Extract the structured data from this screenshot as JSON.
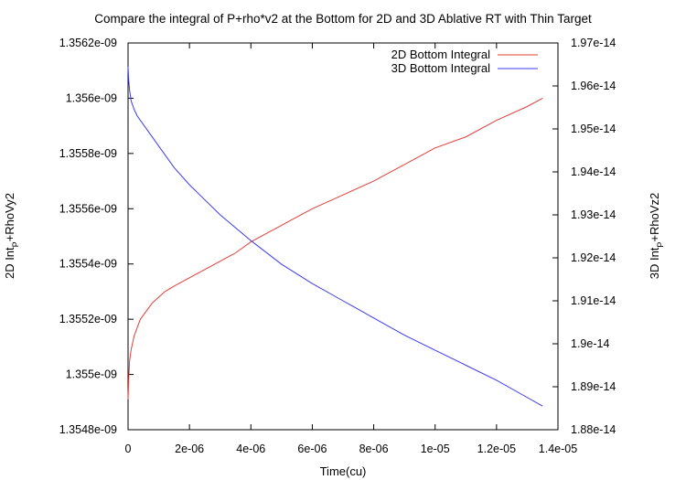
{
  "chart_data": {
    "type": "line",
    "title": "Compare the integral of P+rho*v2 at the Bottom for 2D and 3D Ablative RT with Thin Target",
    "xlabel": "Time(cu)",
    "ylabel_left": {
      "prefix": "2D Int",
      "sub": "P",
      "suffix": "+RhoVy2"
    },
    "ylabel_right": {
      "prefix": "3D Int",
      "sub": "P",
      "suffix": "+RhoVz2"
    },
    "xlim": [
      0,
      1.4e-05
    ],
    "ylim_left": [
      1.3548e-09,
      1.3562e-09
    ],
    "ylim_right": [
      1.88e-14,
      1.97e-14
    ],
    "x_ticks": [
      {
        "value": 0,
        "label": "0"
      },
      {
        "value": 2e-06,
        "label": "2e-06"
      },
      {
        "value": 4e-06,
        "label": "4e-06"
      },
      {
        "value": 6e-06,
        "label": "6e-06"
      },
      {
        "value": 8e-06,
        "label": "8e-06"
      },
      {
        "value": 1e-05,
        "label": "1e-05"
      },
      {
        "value": 1.2e-05,
        "label": "1.2e-05"
      },
      {
        "value": 1.4e-05,
        "label": "1.4e-05"
      }
    ],
    "y_ticks_left": [
      {
        "value": 1.3548e-09,
        "label": "1.3548e-09"
      },
      {
        "value": 1.355e-09,
        "label": "1.355e-09"
      },
      {
        "value": 1.3552e-09,
        "label": "1.3552e-09"
      },
      {
        "value": 1.3554e-09,
        "label": "1.3554e-09"
      },
      {
        "value": 1.3556e-09,
        "label": "1.3556e-09"
      },
      {
        "value": 1.3558e-09,
        "label": "1.3558e-09"
      },
      {
        "value": 1.356e-09,
        "label": "1.356e-09"
      },
      {
        "value": 1.3562e-09,
        "label": "1.3562e-09"
      }
    ],
    "y_ticks_right": [
      {
        "value": 1.88e-14,
        "label": "1.88e-14"
      },
      {
        "value": 1.89e-14,
        "label": "1.89e-14"
      },
      {
        "value": 1.9e-14,
        "label": "1.9e-14"
      },
      {
        "value": 1.91e-14,
        "label": "1.91e-14"
      },
      {
        "value": 1.92e-14,
        "label": "1.92e-14"
      },
      {
        "value": 1.93e-14,
        "label": "1.93e-14"
      },
      {
        "value": 1.94e-14,
        "label": "1.94e-14"
      },
      {
        "value": 1.95e-14,
        "label": "1.95e-14"
      },
      {
        "value": 1.96e-14,
        "label": "1.96e-14"
      },
      {
        "value": 1.97e-14,
        "label": "1.97e-14"
      }
    ],
    "grid": false,
    "legend_position": "top-right",
    "series": [
      {
        "name": "2D Bottom Integral",
        "axis": "left",
        "color": "#e0403a",
        "x": [
          0,
          2e-08,
          5e-08,
          1e-07,
          2e-07,
          3e-07,
          4e-07,
          6e-07,
          8e-07,
          1e-06,
          1.2e-06,
          1.5e-06,
          2e-06,
          2.5e-06,
          3e-06,
          3.5e-06,
          4e-06,
          4.5e-06,
          5e-06,
          5.5e-06,
          6e-06,
          7e-06,
          8e-06,
          9e-06,
          1e-05,
          1.1e-05,
          1.2e-05,
          1.3e-05,
          1.35e-05
        ],
        "y": [
          1.35491e-09,
          1.35498e-09,
          1.35505e-09,
          1.35509e-09,
          1.35514e-09,
          1.35517e-09,
          1.3552e-09,
          1.35523e-09,
          1.35526e-09,
          1.35528e-09,
          1.3553e-09,
          1.35532e-09,
          1.35535e-09,
          1.35538e-09,
          1.35541e-09,
          1.35544e-09,
          1.35548e-09,
          1.35551e-09,
          1.35554e-09,
          1.35557e-09,
          1.3556e-09,
          1.35565e-09,
          1.3557e-09,
          1.35576e-09,
          1.35582e-09,
          1.35586e-09,
          1.35592e-09,
          1.35597e-09,
          1.356e-09
        ]
      },
      {
        "name": "3D Bottom Integral",
        "axis": "right",
        "color": "#3b3bf0",
        "x": [
          0,
          2e-08,
          5e-08,
          1e-07,
          2e-07,
          3e-07,
          5e-07,
          7e-07,
          1e-06,
          1.5e-06,
          2e-06,
          2.5e-06,
          3e-06,
          3.5e-06,
          4e-06,
          5e-06,
          6e-06,
          7e-06,
          8e-06,
          9e-06,
          1e-05,
          1.1e-05,
          1.2e-05,
          1.3e-05,
          1.35e-05
        ],
        "y": [
          1.9645e-14,
          1.9615e-14,
          1.959e-14,
          1.9565e-14,
          1.9545e-14,
          1.953e-14,
          1.951e-14,
          1.949e-14,
          1.946e-14,
          1.941e-14,
          1.937e-14,
          1.9335e-14,
          1.93e-14,
          1.927e-14,
          1.924e-14,
          1.9185e-14,
          1.914e-14,
          1.91e-14,
          1.906e-14,
          1.902e-14,
          1.8985e-14,
          1.895e-14,
          1.8915e-14,
          1.8875e-14,
          1.8855e-14
        ]
      }
    ]
  }
}
